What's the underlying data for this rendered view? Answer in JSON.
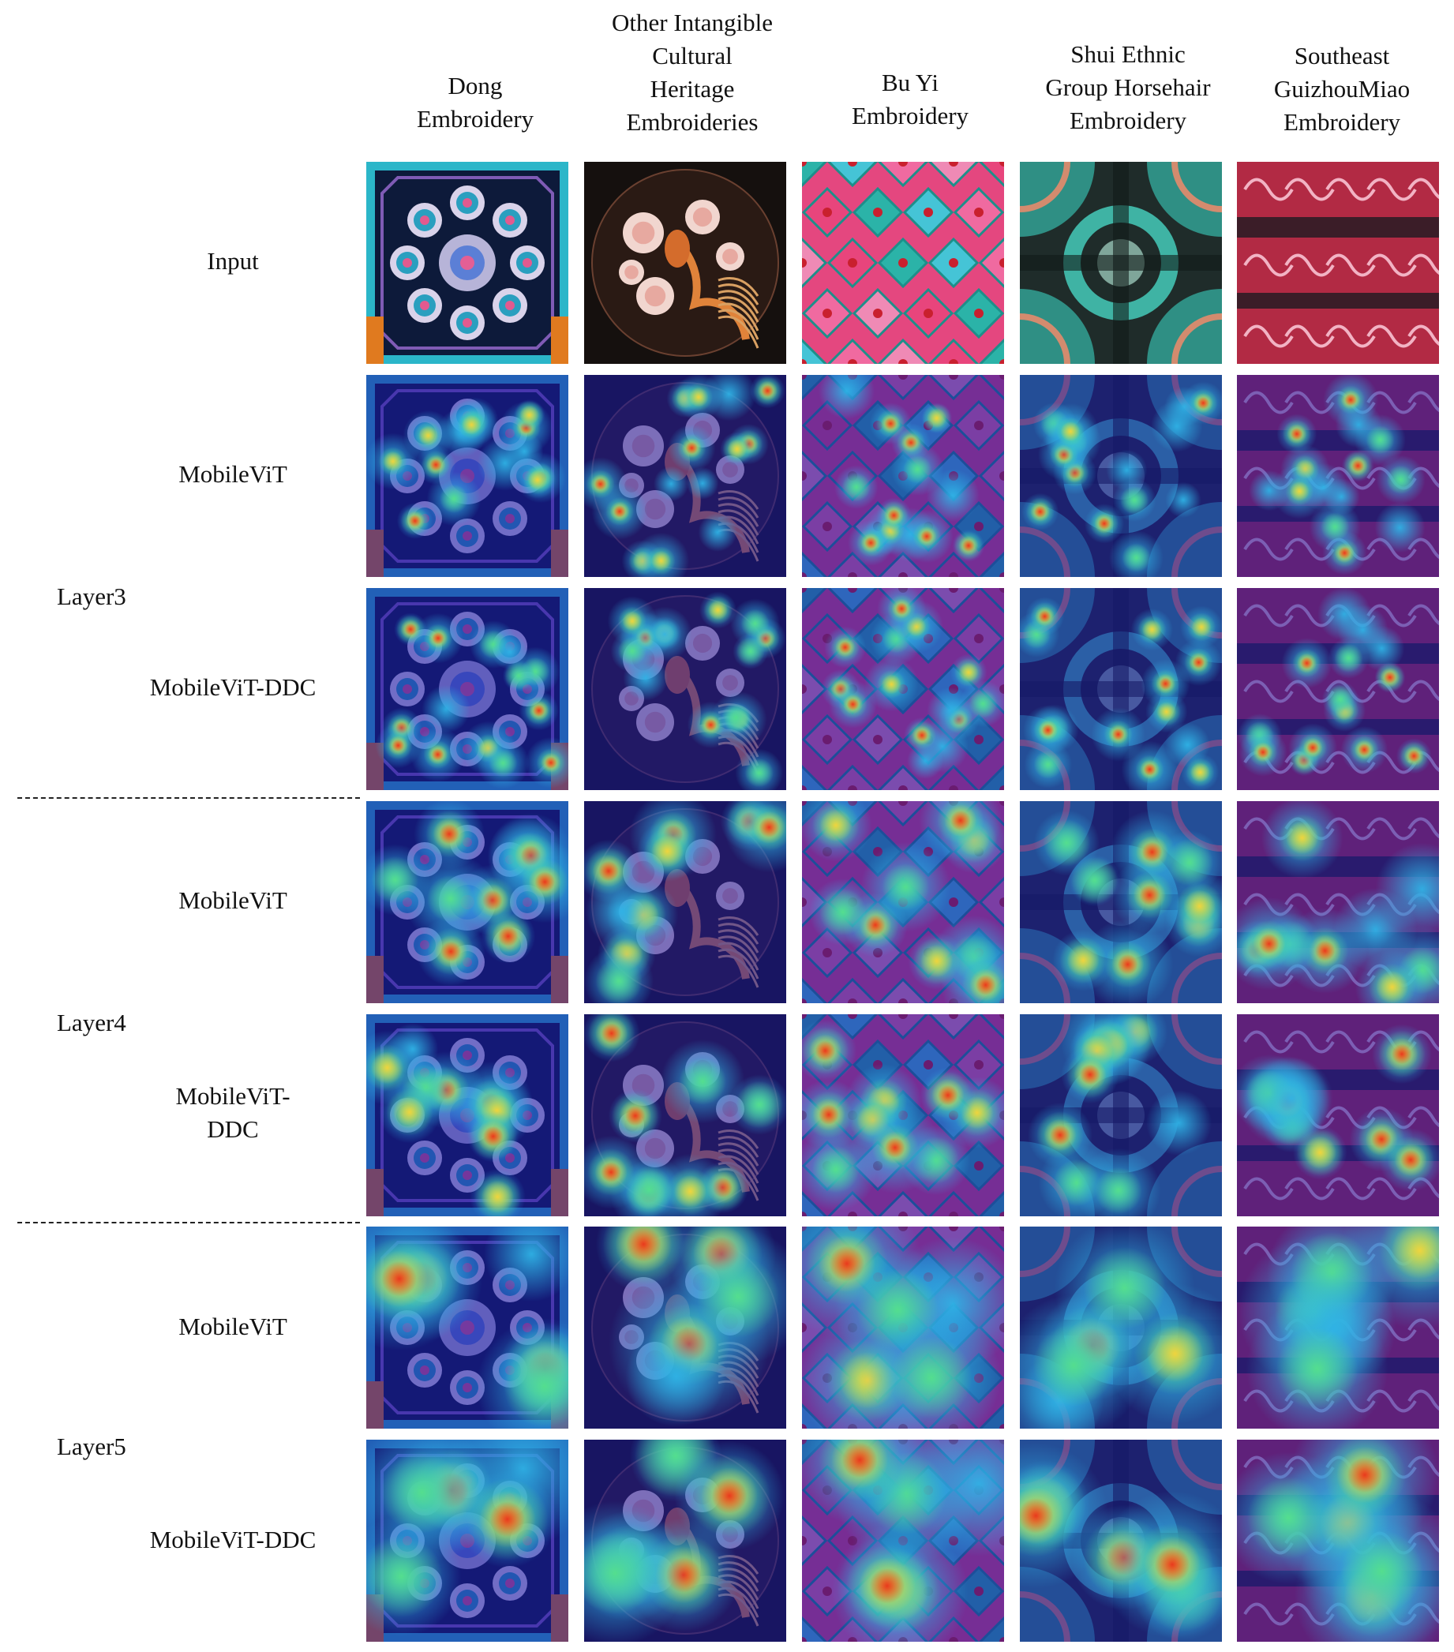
{
  "columns": [
    {
      "lines": [
        "Dong",
        "Embroidery"
      ]
    },
    {
      "lines": [
        "Other Intangible",
        "Cultural",
        "Heritage",
        "Embroideries"
      ]
    },
    {
      "lines": [
        "Bu Yi",
        "Embroidery"
      ]
    },
    {
      "lines": [
        "Shui Ethnic",
        "Group Horsehair",
        "Embroidery"
      ]
    },
    {
      "lines": [
        "Southeast",
        "GuizhouMiao",
        "Embroidery"
      ]
    }
  ],
  "rows": [
    {
      "label": [
        "Input"
      ],
      "kind": "input"
    },
    {
      "label": [
        "MobileViT"
      ],
      "kind": "heat"
    },
    {
      "label": [
        "MobileViT-DDC"
      ],
      "kind": "heat"
    },
    {
      "label": [
        "MobileViT"
      ],
      "kind": "heat"
    },
    {
      "label": [
        "MobileViT-",
        "DDC"
      ],
      "kind": "heat"
    },
    {
      "label": [
        "MobileViT"
      ],
      "kind": "heat"
    },
    {
      "label": [
        "MobileViT-DDC"
      ],
      "kind": "heat"
    }
  ],
  "layers": [
    "Layer3",
    "Layer4",
    "Layer5"
  ],
  "colors": {
    "heat_cold": "#1c1aa8",
    "heat_cool": "#2fb3e6",
    "heat_mid": "#56e08a",
    "heat_warm": "#f7d33a",
    "heat_hot": "#e8321c",
    "dong_bg": "#0d1a3a",
    "other_bg": "#15100e",
    "buyi_bg": "#e4477f",
    "shui_bg": "#1f2c2a",
    "miao_bg": "#8c1c2d"
  }
}
